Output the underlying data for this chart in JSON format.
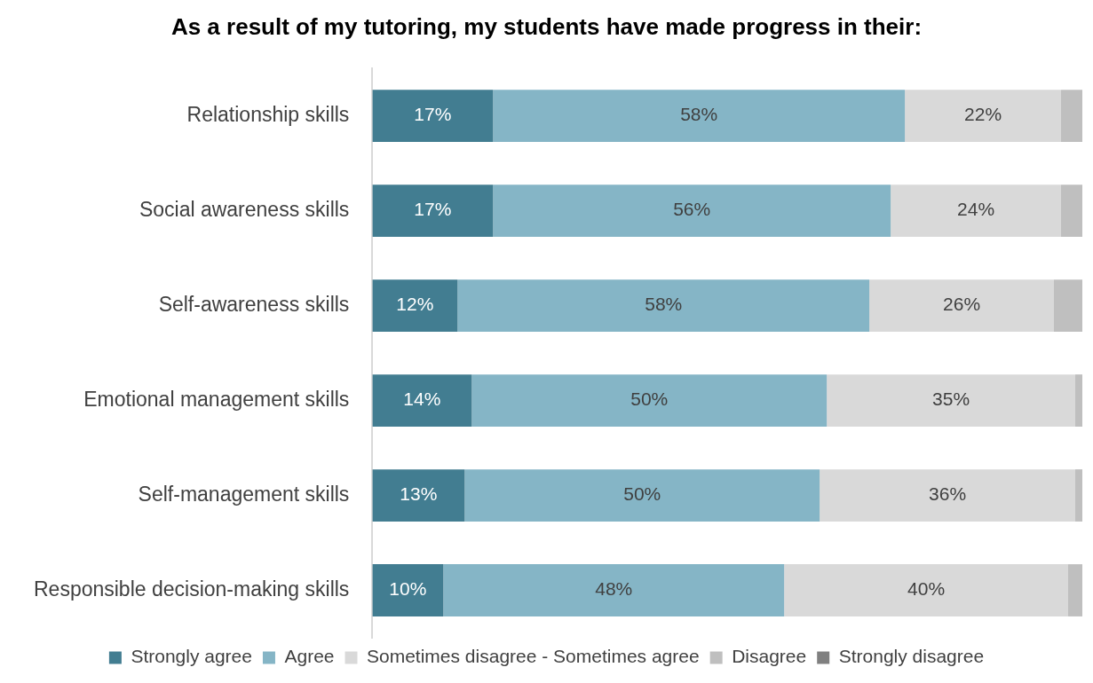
{
  "chart_data": {
    "type": "bar",
    "orientation": "horizontal",
    "stacked": true,
    "title": "As a result of my tutoring, my students have made progress in their:",
    "categories": [
      "Relationship skills",
      "Social awareness skills",
      "Self-awareness skills",
      "Emotional management skills",
      "Self-management skills",
      "Responsible decision-making skills"
    ],
    "series": [
      {
        "name": "Strongly agree",
        "color": "#427d91",
        "values": [
          17,
          17,
          12,
          14,
          13,
          10
        ],
        "value_labels": [
          "17%",
          "17%",
          "12%",
          "14%",
          "13%",
          "10%"
        ]
      },
      {
        "name": "Agree",
        "color": "#85b5c6",
        "values": [
          58,
          56,
          58,
          50,
          50,
          48
        ],
        "value_labels": [
          "58%",
          "56%",
          "58%",
          "50%",
          "50%",
          "48%"
        ]
      },
      {
        "name": "Sometimes disagree - Sometimes agree",
        "color": "#d9d9d9",
        "values": [
          22,
          24,
          26,
          35,
          36,
          40
        ],
        "value_labels": [
          "22%",
          "24%",
          "26%",
          "35%",
          "36%",
          "40%"
        ]
      },
      {
        "name": "Disagree",
        "color": "#bfbfbf",
        "values": [
          3,
          3,
          4,
          1,
          1,
          2
        ]
      },
      {
        "name": "Strongly disagree",
        "color": "#808080",
        "values": [
          0,
          0,
          0,
          0,
          0,
          0
        ]
      }
    ],
    "legend": "bottom"
  }
}
